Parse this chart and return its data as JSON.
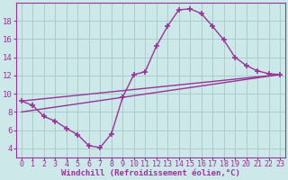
{
  "background_color": "#cce8e8",
  "grid_color": "#aacccc",
  "line_color": "#993399",
  "marker": "+",
  "markersize": 5,
  "linewidth": 1.0,
  "xlabel": "Windchill (Refroidissement éolien,°C)",
  "xlim": [
    -0.5,
    23.5
  ],
  "ylim": [
    3.0,
    20.0
  ],
  "yticks": [
    4,
    6,
    8,
    10,
    12,
    14,
    16,
    18
  ],
  "xticks": [
    0,
    1,
    2,
    3,
    4,
    5,
    6,
    7,
    8,
    9,
    10,
    11,
    12,
    13,
    14,
    15,
    16,
    17,
    18,
    19,
    20,
    21,
    22,
    23
  ],
  "series": [
    {
      "x": [
        0,
        1,
        2,
        3,
        4,
        5,
        6,
        7,
        8,
        9,
        10,
        11,
        12,
        13,
        14,
        15,
        16,
        17,
        18,
        19,
        20,
        21,
        22,
        23
      ],
      "y": [
        9.2,
        8.7,
        7.5,
        7.0,
        6.2,
        5.5,
        4.3,
        4.1,
        5.6,
        9.6,
        12.1,
        12.4,
        15.2,
        17.4,
        19.2,
        19.3,
        18.8,
        17.4,
        15.9,
        14.0,
        13.1,
        12.5,
        12.2,
        12.1
      ]
    },
    {
      "x": [
        0,
        23
      ],
      "y": [
        9.2,
        12.1
      ]
    },
    {
      "x": [
        0,
        23
      ],
      "y": [
        8.0,
        12.1
      ]
    }
  ]
}
